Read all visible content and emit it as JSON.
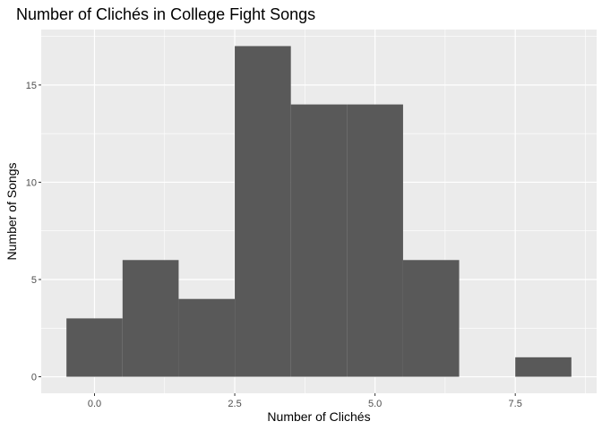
{
  "chart_data": {
    "type": "bar",
    "title": "Number of Clichés in College Fight Songs",
    "xlabel": "Number of Clichés",
    "ylabel": "Number of Songs",
    "bin_width": 1,
    "bins": [
      {
        "x": 0,
        "count": 3
      },
      {
        "x": 1,
        "count": 6
      },
      {
        "x": 2,
        "count": 4
      },
      {
        "x": 3,
        "count": 17
      },
      {
        "x": 4,
        "count": 14
      },
      {
        "x": 5,
        "count": 14
      },
      {
        "x": 6,
        "count": 6
      },
      {
        "x": 7,
        "count": 0
      },
      {
        "x": 8,
        "count": 1
      }
    ],
    "xlim": [
      -0.95,
      8.95
    ],
    "ylim": [
      -0.85,
      17.85
    ],
    "x_ticks": [
      {
        "value": 0,
        "label": "0.0"
      },
      {
        "value": 2.5,
        "label": "2.5"
      },
      {
        "value": 5,
        "label": "5.0"
      },
      {
        "value": 7.5,
        "label": "7.5"
      }
    ],
    "y_ticks": [
      {
        "value": 0,
        "label": "0"
      },
      {
        "value": 5,
        "label": "5"
      },
      {
        "value": 10,
        "label": "10"
      },
      {
        "value": 15,
        "label": "15"
      }
    ],
    "grid": true,
    "legend": "none",
    "colors": {
      "panel": "#ebebeb",
      "grid_major": "#ffffff",
      "bar_fill": "#595959",
      "tick": "#333333"
    }
  }
}
